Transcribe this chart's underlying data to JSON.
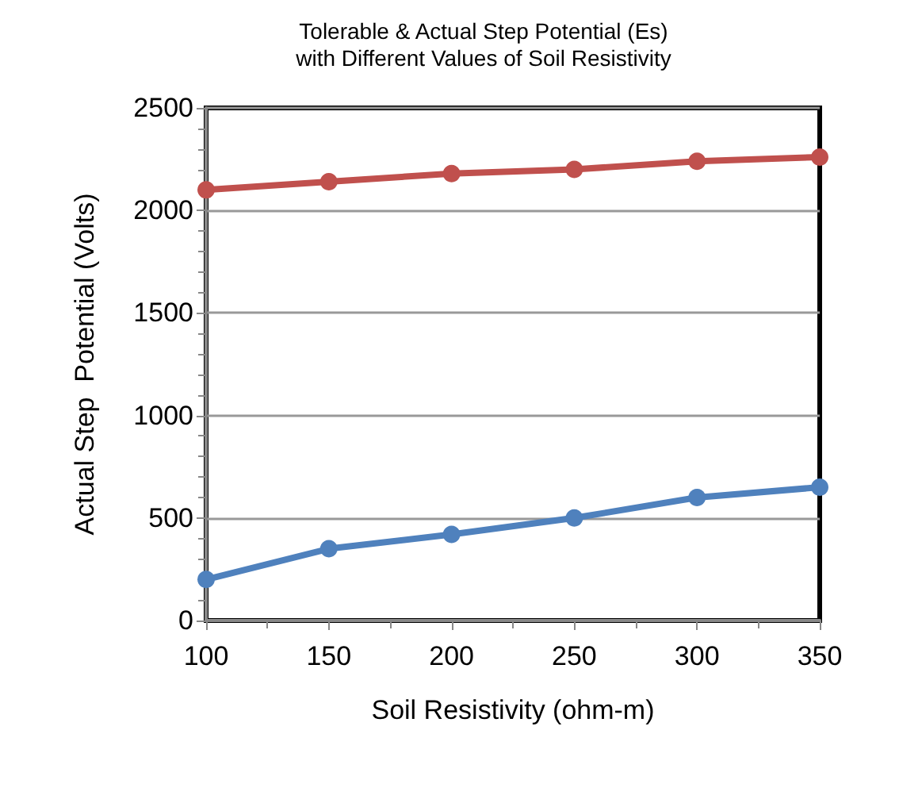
{
  "chart_data": {
    "type": "line",
    "title": "Tolerable & Actual Step Potential (Es)\nwith Different Values of Soil Resistivity",
    "xlabel": "Soil Resistivity (ohm-m)",
    "ylabel": "Actual Step  Potential (Volts)",
    "x": [
      100,
      150,
      200,
      250,
      300,
      350
    ],
    "series": [
      {
        "color": "#c0504d",
        "values": [
          2100,
          2140,
          2180,
          2200,
          2240,
          2260
        ]
      },
      {
        "color": "#4f81bd",
        "values": [
          200,
          350,
          420,
          500,
          600,
          650
        ]
      }
    ],
    "xlim": [
      100,
      350
    ],
    "xticks": [
      100,
      150,
      200,
      250,
      300,
      350
    ],
    "ylim": [
      0,
      2500
    ],
    "yticks": [
      0,
      500,
      1000,
      1500,
      2000,
      2500
    ],
    "grid": "y",
    "marker": "circle",
    "line_style": "solid"
  }
}
